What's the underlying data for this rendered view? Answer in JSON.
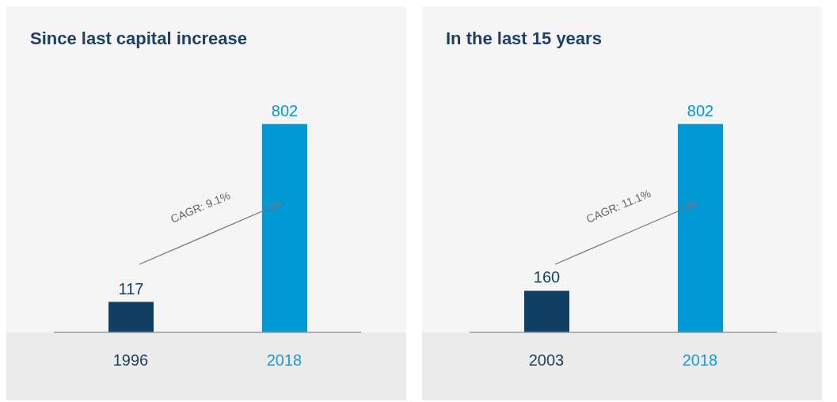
{
  "chart_data": [
    {
      "type": "bar",
      "title": "Since last capital increase",
      "categories": [
        "1996",
        "2018"
      ],
      "values": [
        117,
        802
      ],
      "colors": [
        "#0f3f63",
        "#0099d8"
      ],
      "data_labels": true,
      "annotations": [
        "CAGR: 9.1%"
      ]
    },
    {
      "type": "bar",
      "title": "In the last 15 years",
      "categories": [
        "2003",
        "2018"
      ],
      "values": [
        160,
        802
      ],
      "colors": [
        "#0f3f63",
        "#0099d8"
      ],
      "data_labels": true,
      "annotations": [
        "CAGR: 11.1%"
      ]
    }
  ]
}
